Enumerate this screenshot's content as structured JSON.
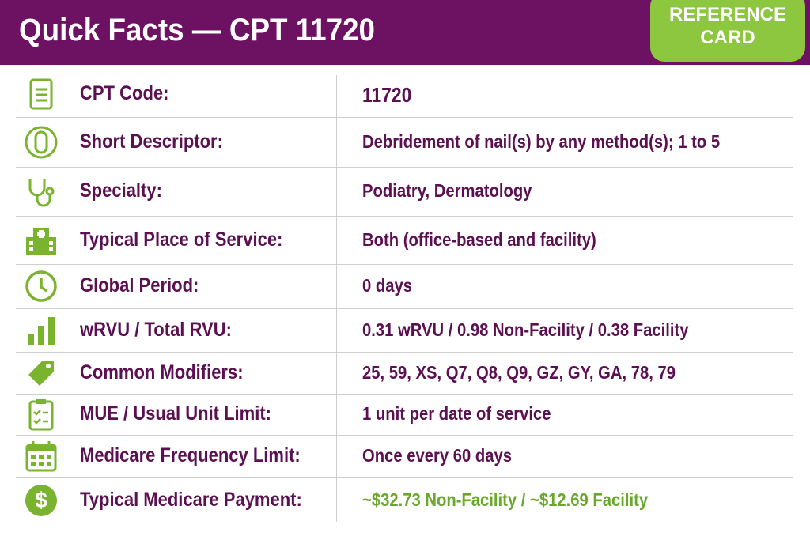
{
  "header": {
    "title": "Quick Facts — CPT 11720",
    "badge": [
      "REFERENCE",
      "CARD"
    ]
  },
  "rows": [
    {
      "label": "CPT Code:",
      "value": "11720"
    },
    {
      "label": "Short Descriptor:",
      "value": "Debridement of nail(s) by any method(s); 1 to 5"
    },
    {
      "label": "Specialty:",
      "value": "Podiatry, Dermatology"
    },
    {
      "label": "Typical Place of Service:",
      "value": "Both (office-based and facility)"
    },
    {
      "label": "Global Period:",
      "value": "0 days"
    },
    {
      "label": "wRVU / Total RVU:",
      "value": "0.31 wRVU / 0.98 Non-Facility / 0.38 Facility"
    },
    {
      "label": "Common Modifiers:",
      "value": "25, 59, XS, Q7, Q8, Q9, GZ, GY, GA, 78, 79"
    },
    {
      "label": "MUE / Usual Unit Limit:",
      "value": "1 unit per date of service"
    },
    {
      "label": "Medicare Frequency Limit:",
      "value": "Once every 60 days"
    },
    {
      "label": "Typical Medicare Payment:",
      "value": "~$32.73 Non-Facility / ~$12.69 Facility"
    }
  ]
}
